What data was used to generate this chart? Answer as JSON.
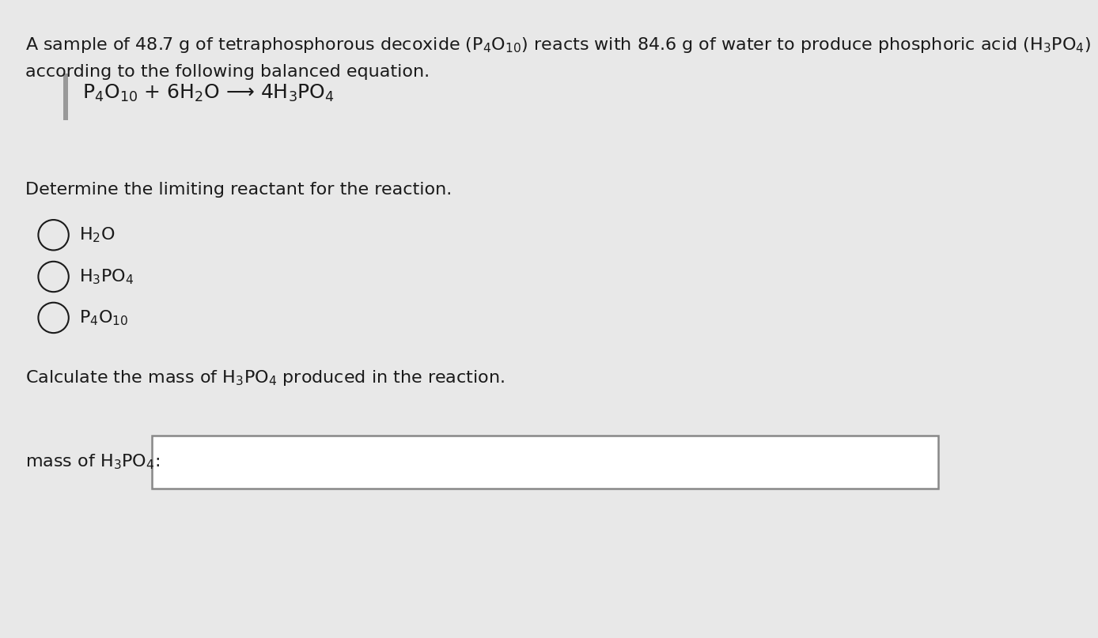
{
  "bg_color": "#e8e8e8",
  "text_color": "#1a1a1a",
  "font_size_body": 16,
  "font_size_equation": 18,
  "font_size_radio": 16,
  "input_box_color": "#ffffff",
  "input_box_border": "#888888",
  "left_bar_color": "#999999",
  "line1": "A sample of 48.7 g of tetraphosphorous decoxide (P$_4$O$_{10}$) reacts with 84.6 g of water to produce phosphoric acid (H$_3$PO$_4$)",
  "line2": "according to the following balanced equation.",
  "equation": "P$_4$O$_{10}$ + 6H$_2$O ⟶ 4H$_3$PO$_4$",
  "section1": "Determine the limiting reactant for the reaction.",
  "radio1": "H$_2$O",
  "radio2": "H$_3$PO$_4$",
  "radio3": "P$_4$O$_{10}$",
  "section2": "Calculate the mass of H$_3$PO$_4$ produced in the reaction.",
  "mass_label": "mass of H$_3$PO$_4$:"
}
